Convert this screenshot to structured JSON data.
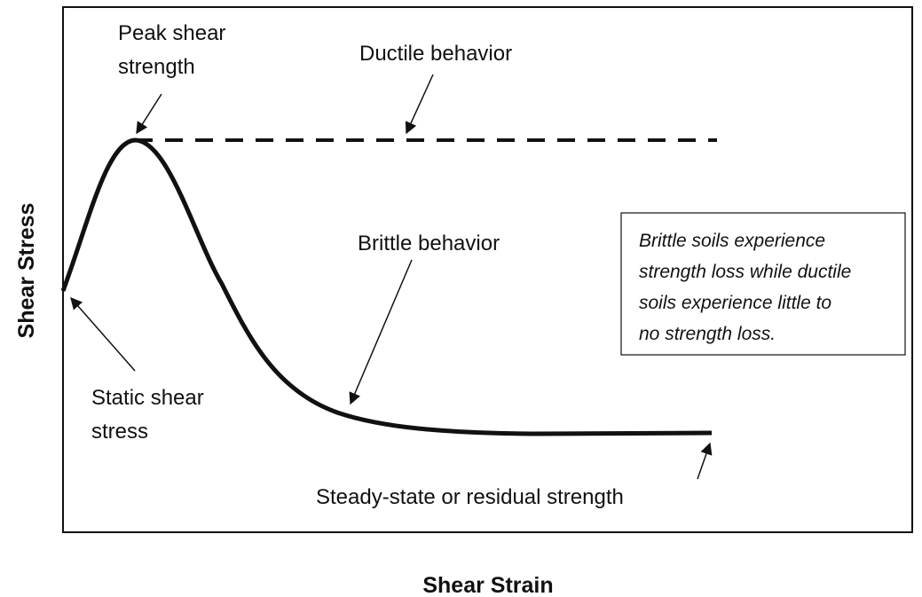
{
  "x_axis_label": "Shear Strain",
  "y_axis_label": "Shear Stress",
  "annotations": {
    "peak": [
      "Peak shear",
      "strength"
    ],
    "ductile": [
      "Ductile behavior"
    ],
    "brittle": [
      "Brittle behavior"
    ],
    "static": [
      "Static shear",
      "stress"
    ],
    "residual": [
      "Steady-state or residual strength"
    ]
  },
  "note": [
    "Brittle soils experience",
    "strength loss while ductile",
    "soils experience little to",
    "no strength loss."
  ]
}
